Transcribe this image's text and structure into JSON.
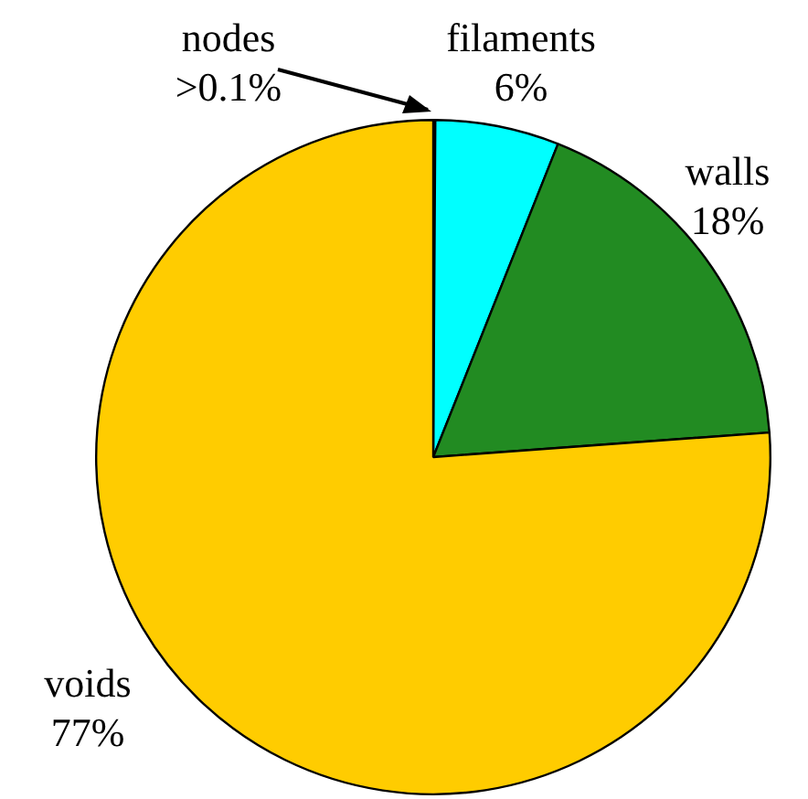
{
  "chart_data": {
    "type": "pie",
    "categories": [
      "nodes",
      "filaments",
      "walls",
      "voids"
    ],
    "values": [
      0.1,
      6,
      18,
      77
    ],
    "value_labels": [
      ">0.1%",
      "6%",
      "18%",
      "77%"
    ],
    "colors": [
      "#000000",
      "#00ffff",
      "#228b22",
      "#ffcc00"
    ],
    "legend": false
  }
}
